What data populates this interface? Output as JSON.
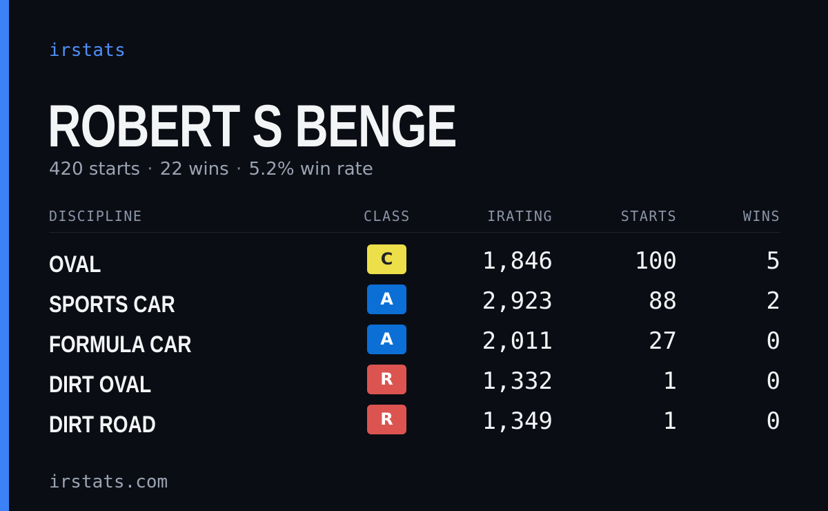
{
  "brand": "irstats",
  "driver": {
    "name": "ROBERT S BENGE",
    "starts": "420 starts",
    "wins": "22 wins",
    "win_rate": "5.2% win rate",
    "separator": "·"
  },
  "table": {
    "headers": {
      "discipline": "DISCIPLINE",
      "class": "CLASS",
      "irating": "IRATING",
      "starts": "STARTS",
      "wins": "WINS"
    },
    "rows": [
      {
        "discipline": "OVAL",
        "class": "C",
        "irating": "1,846",
        "starts": "100",
        "wins": "5"
      },
      {
        "discipline": "SPORTS CAR",
        "class": "A",
        "irating": "2,923",
        "starts": "88",
        "wins": "2"
      },
      {
        "discipline": "FORMULA CAR",
        "class": "A",
        "irating": "2,011",
        "starts": "27",
        "wins": "0"
      },
      {
        "discipline": "DIRT OVAL",
        "class": "R",
        "irating": "1,332",
        "starts": "1",
        "wins": "0"
      },
      {
        "discipline": "DIRT ROAD",
        "class": "R",
        "irating": "1,349",
        "starts": "1",
        "wins": "0"
      }
    ]
  },
  "footer": "irstats.com",
  "colors": {
    "background": "#0b0d14",
    "accent": "#3b82f6",
    "class_c": "#ecdf4a",
    "class_a": "#0b6fd6",
    "class_r": "#dc5450"
  }
}
